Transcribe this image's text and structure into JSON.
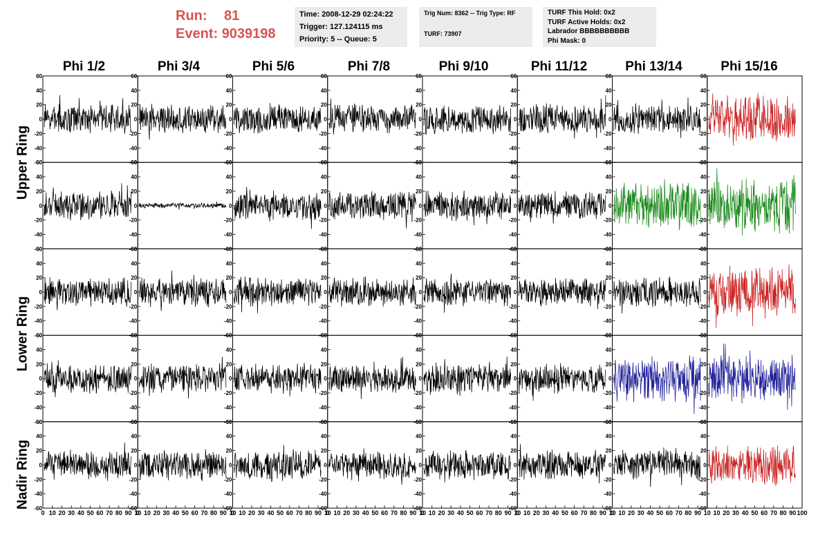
{
  "header": {
    "run_label": "Run:",
    "run_value": "81",
    "event_label": "Event:",
    "event_value": "9039198"
  },
  "info_boxes": [
    {
      "lines": [
        "Time: 2008-12-29 02:24:22",
        "Trigger: 127.124115 ms",
        "Priority: 5 -- Queue: 5"
      ]
    },
    {
      "lines": [
        "Trig Num: 8362 -- Trig Type: RF",
        "",
        "TURF: 73907"
      ]
    },
    {
      "lines": [
        "TURF This Hold: 0x2",
        "TURF Active Holds: 0x2",
        "Labrador BBBBBBBBBB",
        "Phi Mask: 0"
      ]
    }
  ],
  "columns": [
    "Phi 1/2",
    "Phi 3/4",
    "Phi 5/6",
    "Phi 7/8",
    "Phi 9/10",
    "Phi 11/12",
    "Phi 13/14",
    "Phi 15/16"
  ],
  "ring_labels": [
    "Upper Ring",
    "Lower Ring",
    "Nadir Ring"
  ],
  "chart_data": {
    "type": "line",
    "rows": 5,
    "columns": 8,
    "ylim": [
      -60,
      60
    ],
    "xlim": [
      0,
      100
    ],
    "y_ticks": [
      -60,
      -40,
      -20,
      0,
      20,
      40,
      60
    ],
    "x_ticks": [
      0,
      10,
      20,
      30,
      40,
      50,
      60,
      70,
      80,
      90,
      100
    ],
    "x_tick_labels_first": [
      "0",
      "10",
      "20",
      "30",
      "40",
      "50",
      "60",
      "70",
      "80",
      "90",
      "10"
    ],
    "x_tick_labels_last": [
      "10",
      "20",
      "30",
      "40",
      "50",
      "60",
      "70",
      "80",
      "90",
      "100"
    ],
    "trace_color_default": "#000000",
    "highlighted_traces": [
      {
        "row": 0,
        "col": 7,
        "color": "#cc2222",
        "amplitude": 38
      },
      {
        "row": 1,
        "col": 6,
        "color": "#1a8a1a",
        "amplitude": 35
      },
      {
        "row": 1,
        "col": 7,
        "color": "#1a8a1a",
        "amplitude": 42
      },
      {
        "row": 2,
        "col": 7,
        "color": "#cc2222",
        "amplitude": 38
      },
      {
        "row": 3,
        "col": 6,
        "color": "#22229a",
        "amplitude": 35
      },
      {
        "row": 3,
        "col": 7,
        "color": "#22229a",
        "amplitude": 35
      },
      {
        "row": 4,
        "col": 7,
        "color": "#cc2222",
        "amplitude": 30
      }
    ],
    "quiet_traces": [
      {
        "row": 1,
        "col": 1,
        "amplitude": 4
      }
    ],
    "default_amplitude": 22
  }
}
